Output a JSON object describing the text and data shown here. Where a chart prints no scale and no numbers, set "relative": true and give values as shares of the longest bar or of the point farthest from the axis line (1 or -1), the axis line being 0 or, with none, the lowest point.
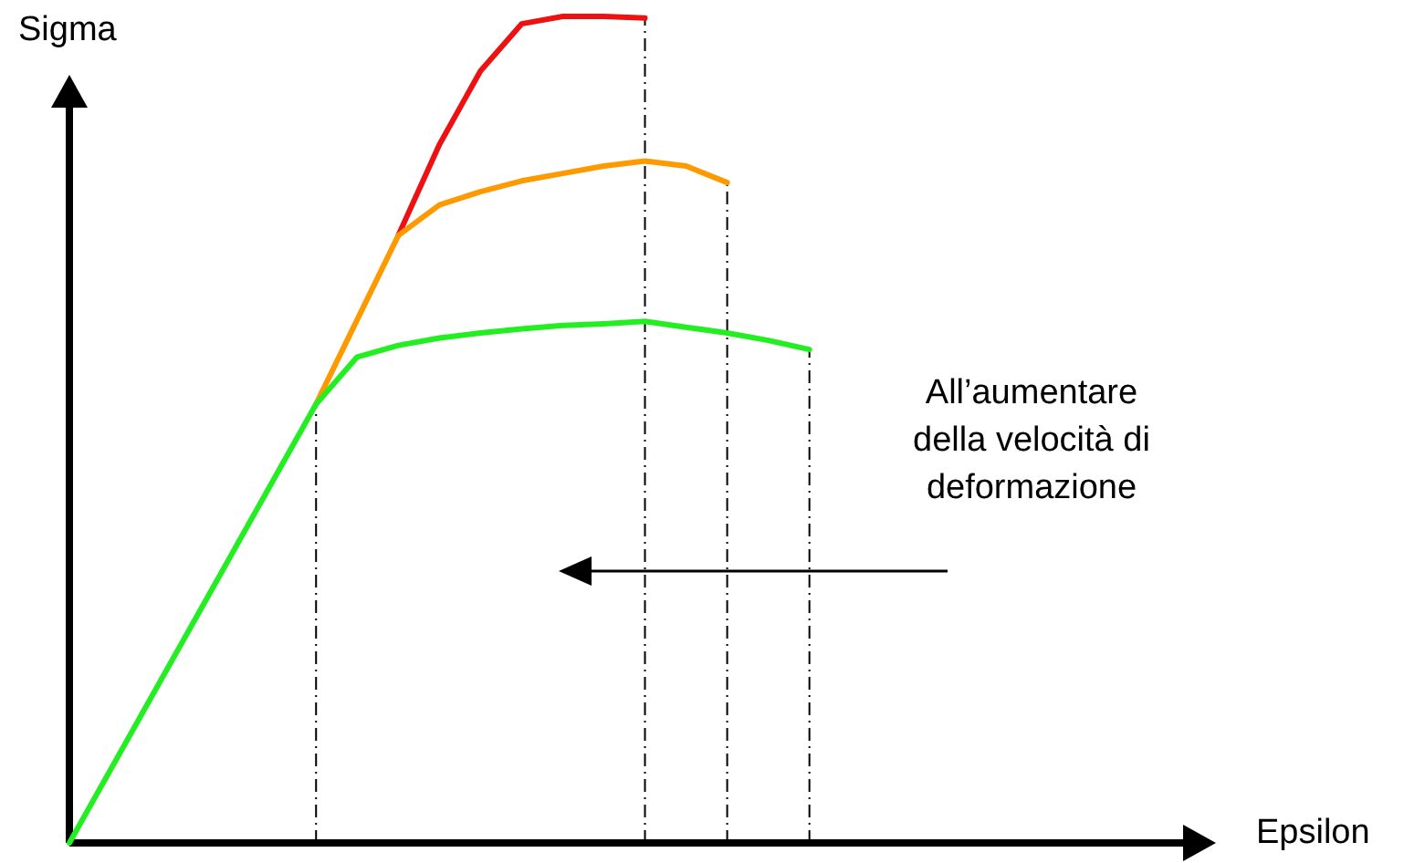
{
  "chart_data": {
    "type": "line",
    "relative": true,
    "xlabel": "Epsilon",
    "ylabel": "Sigma",
    "annotations": [
      "All’aumentare\ndella velocità di\ndeformazione"
    ],
    "categories": [
      null,
      null,
      null,
      null,
      null,
      null,
      null,
      null,
      null,
      null,
      null,
      null,
      null,
      null,
      null,
      null,
      null,
      null,
      null,
      null,
      null,
      null,
      null,
      null,
      null,
      null,
      null,
      null
    ],
    "series": [
      {
        "color": "#22ee22",
        "values": [
          0,
          null,
          null,
          null,
          null,
          null,
          0.531,
          0.588,
          0.602,
          0.611,
          0.617,
          0.622,
          0.626,
          0.628,
          0.631,
          0.624,
          0.617,
          0.608,
          0.597,
          null,
          null,
          null,
          null,
          null,
          null,
          null,
          null,
          null
        ]
      },
      {
        "color": "#ff9900",
        "values": [
          null,
          null,
          null,
          null,
          null,
          null,
          0.531,
          null,
          0.735,
          0.772,
          0.788,
          0.801,
          0.81,
          0.819,
          0.825,
          0.819,
          0.799,
          null,
          null,
          null,
          null,
          null,
          null,
          null,
          null,
          null,
          null,
          null
        ]
      },
      {
        "color": "#ee1111",
        "values": [
          null,
          null,
          null,
          null,
          null,
          null,
          null,
          null,
          0.735,
          0.845,
          0.934,
          0.991,
          1,
          1,
          0.998,
          null,
          null,
          null,
          null,
          null,
          null,
          null,
          null,
          null,
          null,
          null,
          null,
          null
        ]
      }
    ],
    "grid": false,
    "legend": false,
    "tick_labels": false,
    "marker": "none"
  }
}
